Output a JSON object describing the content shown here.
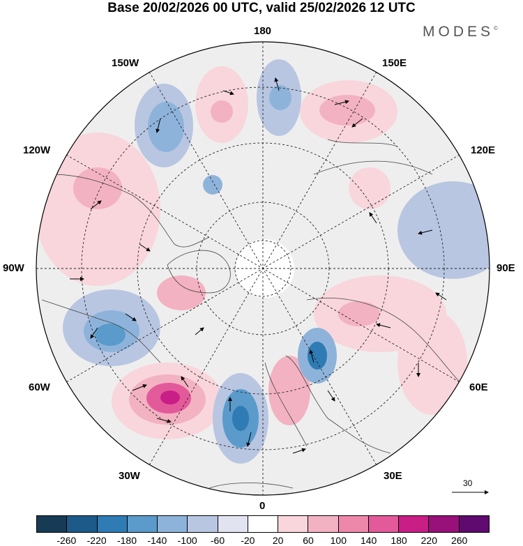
{
  "title": "Base 20/02/2026 00 UTC, valid 25/02/2026 12 UTC",
  "brand": {
    "name": "MODES",
    "mark": "©"
  },
  "longitude_labels": {
    "top": "180",
    "upper_left": "150W",
    "upper_right": "150E",
    "left_upper": "120W",
    "right_upper": "120E",
    "left": "90W",
    "right": "90E",
    "left_lower": "60W",
    "right_lower": "60E",
    "lower_left": "30W",
    "lower_right": "30E",
    "bottom": "0"
  },
  "reference_vector": {
    "value": "30"
  },
  "colorbar": {
    "colors": [
      "#173a55",
      "#1d5a8a",
      "#2f7bb4",
      "#5a9bcb",
      "#8eb3da",
      "#b8c6e2",
      "#e2e3f0",
      "#ffffff",
      "#f8d6dc",
      "#f3b2c1",
      "#ee88ab",
      "#e35a9a",
      "#c81e86",
      "#98107a",
      "#5e0a6f"
    ],
    "labels": [
      "-260",
      "-220",
      "-180",
      "-140",
      "-100",
      "-60",
      "-20",
      "20",
      "60",
      "100",
      "140",
      "180",
      "220",
      "260"
    ]
  },
  "palette": {
    "land": "#ececec",
    "coast": "#444444",
    "grid": "#222222"
  }
}
